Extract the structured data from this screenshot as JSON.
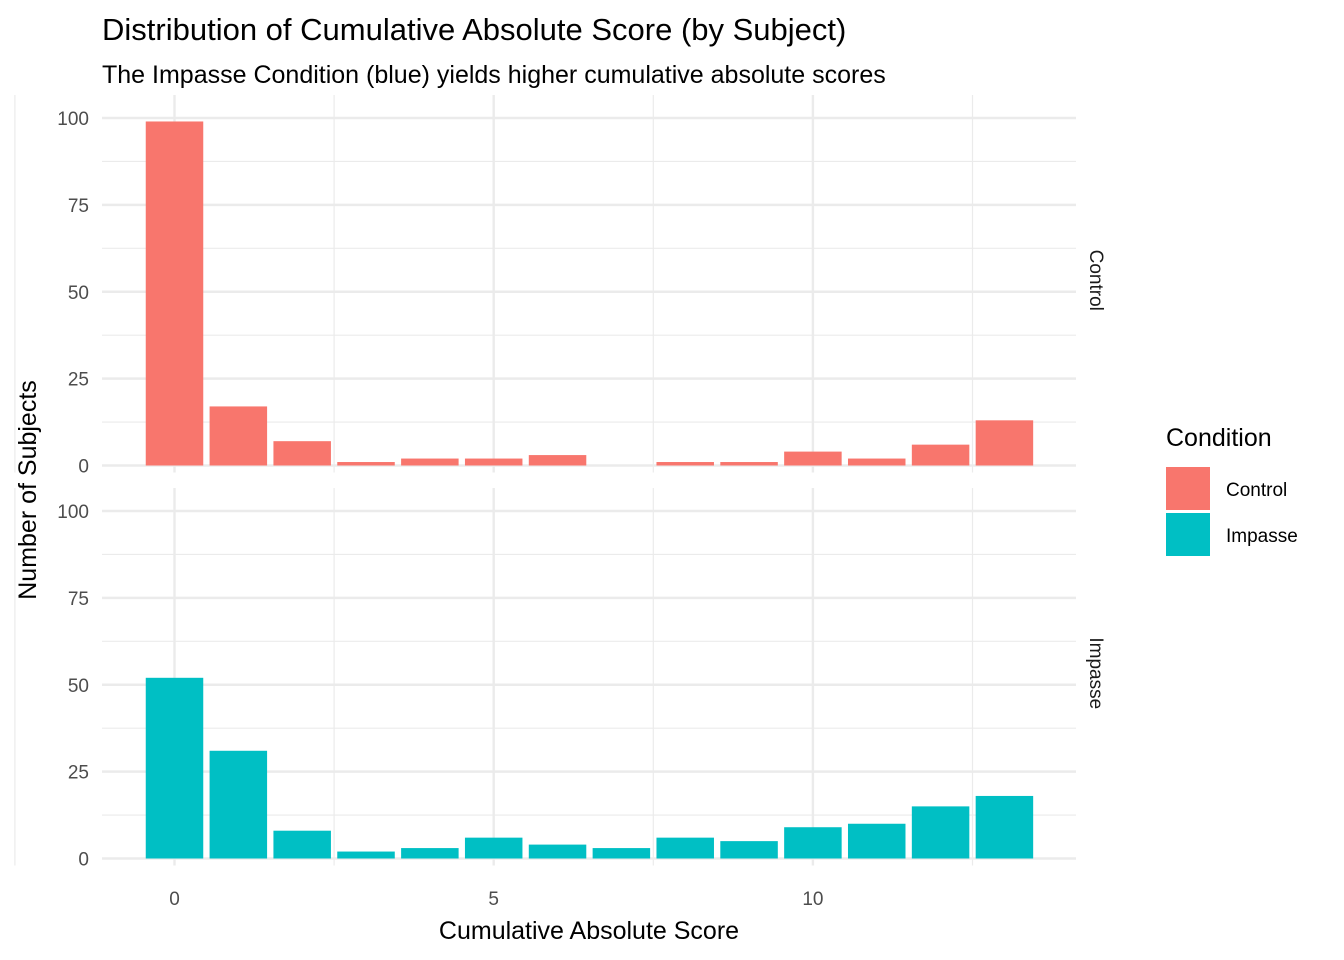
{
  "chart_data": {
    "type": "bar",
    "title": "Distribution of Cumulative Absolute Score (by Subject)",
    "subtitle": "The Impasse Condition (blue) yields higher cumulative absolute scores",
    "xlabel": "Cumulative Absolute Score",
    "ylabel": "Number of Subjects",
    "x_ticks": [
      0,
      5,
      10
    ],
    "y_ticks": [
      0,
      25,
      50,
      75,
      100
    ],
    "ylim": [
      0,
      100
    ],
    "grid": true,
    "legend": {
      "title": "Condition",
      "position": "right",
      "entries": [
        {
          "label": "Control",
          "color": "#F8766D"
        },
        {
          "label": "Impasse",
          "color": "#00BFC4"
        }
      ]
    },
    "panels": [
      {
        "label": "Control",
        "color": "#F8766D",
        "x": [
          0,
          1,
          2,
          3,
          4,
          5,
          6,
          8,
          9,
          10,
          11,
          12,
          13
        ],
        "values": [
          99,
          17,
          7,
          1,
          2,
          2,
          3,
          1,
          1,
          4,
          2,
          6,
          13
        ]
      },
      {
        "label": "Impasse",
        "color": "#00BFC4",
        "x": [
          0,
          1,
          2,
          3,
          4,
          5,
          6,
          7,
          8,
          9,
          10,
          11,
          12,
          13
        ],
        "values": [
          52,
          31,
          8,
          2,
          3,
          6,
          4,
          3,
          6,
          5,
          9,
          10,
          15,
          18
        ]
      }
    ]
  }
}
